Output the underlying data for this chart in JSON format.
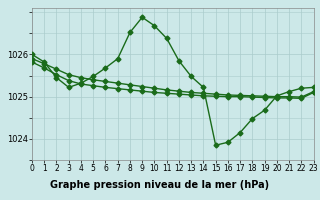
{
  "line1_x": [
    0,
    1,
    2,
    3,
    4,
    5,
    6,
    7,
    8,
    9,
    10,
    11,
    12,
    13,
    14,
    15,
    16,
    17,
    18,
    19,
    20,
    21,
    22,
    23
  ],
  "line1_y": [
    1025.9,
    1025.78,
    1025.65,
    1025.52,
    1025.45,
    1025.4,
    1025.36,
    1025.32,
    1025.28,
    1025.24,
    1025.2,
    1025.16,
    1025.13,
    1025.1,
    1025.08,
    1025.06,
    1025.04,
    1025.03,
    1025.02,
    1025.01,
    1025.0,
    1025.0,
    1024.99,
    1025.12
  ],
  "line2_x": [
    0,
    1,
    2,
    3,
    4,
    5,
    6,
    7,
    8,
    9,
    10,
    11,
    12,
    13,
    14,
    15,
    16,
    17,
    18,
    19,
    20,
    21,
    22,
    23
  ],
  "line2_y": [
    1025.82,
    1025.68,
    1025.52,
    1025.38,
    1025.3,
    1025.26,
    1025.22,
    1025.19,
    1025.16,
    1025.13,
    1025.1,
    1025.08,
    1025.06,
    1025.04,
    1025.02,
    1025.01,
    1025.0,
    1025.0,
    1024.99,
    1024.98,
    1024.97,
    1024.97,
    1024.96,
    1025.1
  ],
  "line3_x": [
    0,
    1,
    2,
    3,
    4,
    5,
    6,
    7,
    8,
    9,
    10,
    11,
    12,
    13,
    14,
    15,
    16,
    17,
    18,
    19,
    20,
    21,
    22,
    23
  ],
  "line3_y": [
    1026.0,
    1025.82,
    1025.45,
    1025.22,
    1025.32,
    1025.48,
    1025.68,
    1025.9,
    1026.52,
    1026.88,
    1026.68,
    1026.38,
    1025.85,
    1025.48,
    1025.22,
    1023.85,
    1023.92,
    1024.15,
    1024.48,
    1024.68,
    1025.02,
    1025.12,
    1025.2,
    1025.22
  ],
  "background_color": "#cce8e8",
  "grid_color_major": "#aacccc",
  "grid_color_minor": "#aacccc",
  "line_color": "#1a6b1a",
  "marker": "D",
  "marker_size": 2.5,
  "xlim": [
    0,
    23
  ],
  "ylim": [
    1023.5,
    1027.1
  ],
  "yticks": [
    1024,
    1025,
    1026
  ],
  "xticks": [
    0,
    1,
    2,
    3,
    4,
    5,
    6,
    7,
    8,
    9,
    10,
    11,
    12,
    13,
    14,
    15,
    16,
    17,
    18,
    19,
    20,
    21,
    22,
    23
  ],
  "xlabel": "Graphe pression niveau de la mer (hPa)",
  "xlabel_fontsize": 7,
  "tick_fontsize": 5.5,
  "line_width": 1.0,
  "xlabel_bg": "#88aa88"
}
